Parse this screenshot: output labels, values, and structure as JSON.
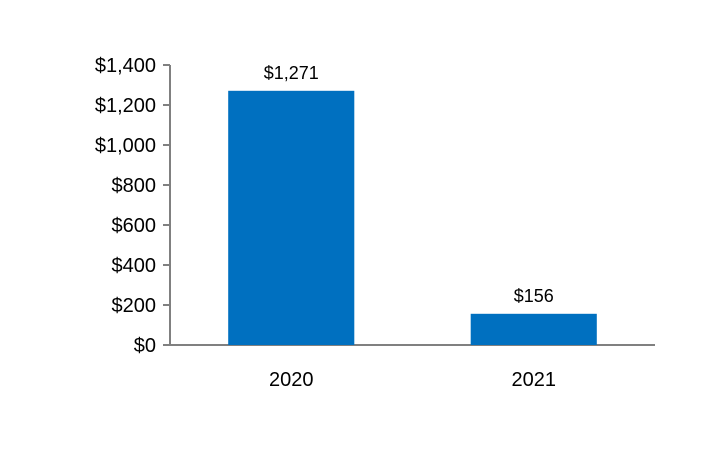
{
  "chart_data": {
    "type": "bar",
    "categories": [
      "2020",
      "2021"
    ],
    "values": [
      1271,
      156
    ],
    "data_labels": [
      "$1,271",
      "$156"
    ],
    "title": "",
    "xlabel": "",
    "ylabel": "",
    "ylim": [
      0,
      1400
    ],
    "y_ticks": [
      0,
      200,
      400,
      600,
      800,
      1000,
      1200,
      1400
    ],
    "y_tick_labels": [
      "$0",
      "$200",
      "$400",
      "$600",
      "$800",
      "$1,000",
      "$1,200",
      "$1,400"
    ],
    "grid": false,
    "legend": "none",
    "bar_color": "#0070C0",
    "axis_color": "#808080"
  }
}
